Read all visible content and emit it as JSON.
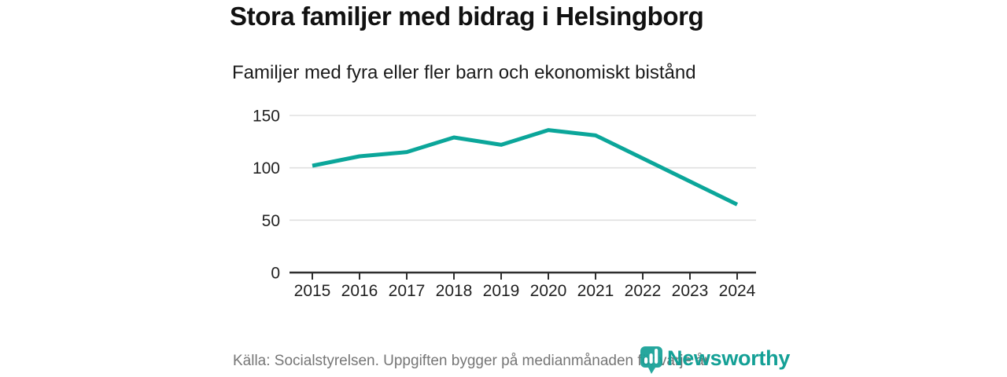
{
  "title": "Stora familjer med bidrag i Helsingborg",
  "subtitle": "Familjer med fyra eller fler barn och ekonomiskt bistånd",
  "footer": {
    "source": "Källa: Socialstyrelsen. Uppgiften bygger på medianmånaden för varje år"
  },
  "brand": {
    "name": "Newsworthy",
    "icon": "bar-chart-pin-icon",
    "color": "#14a096"
  },
  "colors": {
    "line": "#0ba69a",
    "grid": "#e0e0e0",
    "axis": "#2e2e2e",
    "tick_text": "#222222",
    "title_text": "#111111",
    "muted_text": "#767676"
  },
  "chart_data": {
    "type": "line",
    "title": "Stora familjer med bidrag i Helsingborg",
    "subtitle": "Familjer med fyra eller fler barn och ekonomiskt bistånd",
    "x": [
      2015,
      2016,
      2017,
      2018,
      2019,
      2020,
      2021,
      2022,
      2023,
      2024
    ],
    "series": [
      {
        "name": "Familjer med fyra eller fler barn och ekonomiskt bistånd",
        "values": [
          102,
          111,
          115,
          129,
          122,
          136,
          131,
          109,
          87,
          65
        ]
      }
    ],
    "xlabel": "",
    "ylabel": "",
    "ylim": [
      0,
      150
    ],
    "yticks": [
      0,
      50,
      100,
      150
    ],
    "grid": true,
    "legend": "none"
  }
}
